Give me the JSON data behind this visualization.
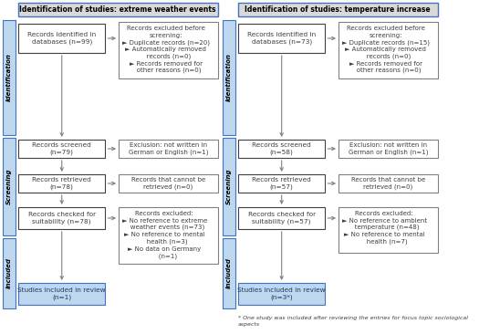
{
  "left_title": "Identification of studies: extreme weather events",
  "right_title": "Identification of studies: temperature increase",
  "left_side_labels": [
    "Identification",
    "Screening",
    "Included"
  ],
  "right_side_labels": [
    "Identification",
    "Screening",
    "Included"
  ],
  "left_boxes": {
    "id_main": "Records identified in\ndatabases (n=99)",
    "id_excl": "Records excluded before\nscreening:\n► Duplicate records (n=20)\n► Automatically removed\n   records (n=0)\n► Records removed for\n   other reasons (n=0)",
    "screen_main": "Records screened\n(n=79)",
    "screen_excl": "Exclusion: not written in\nGerman or English (n=1)",
    "retrieve_main": "Records retrieved\n(n=78)",
    "retrieve_excl": "Records that cannot be\nretrieved (n=0)",
    "suitability_main": "Records checked for\nsuitability (n=78)",
    "suitability_excl": "Records excluded:\n► No reference to extreme\n   weather events (n=73)\n► No reference to mental\n   health (n=3)\n► No data on Germany\n   (n=1)",
    "included_main": "Studies included in review\n(n=1)"
  },
  "right_boxes": {
    "id_main": "Records identified in\ndatabases (n=73)",
    "id_excl": "Records excluded before\nscreening:\n► Duplicate records (n=15)\n► Automatically removed\n   records (n=0)\n► Records removed for\n   other reasons (n=0)",
    "screen_main": "Records screened\n(n=58)",
    "screen_excl": "Exclusion: not written in\nGerman or English (n=1)",
    "retrieve_main": "Records retrieved\n(n=57)",
    "retrieve_excl": "Records that cannot be\nretrieved (n=0)",
    "suitability_main": "Records checked for\nsuitability (n=57)",
    "suitability_excl": "Records excluded:\n► No reference to ambient\n   temperature (n=48)\n► No reference to mental\n   health (n=7)",
    "included_main": "Studies included in review\n(n=3*)"
  },
  "footnote": "* One study was included after reviewing the entries for focus topic sociological\naspects",
  "colors": {
    "title_bg": "#d9d9d9",
    "title_border": "#4472c4",
    "side_label_bg": "#bdd7ee",
    "side_label_border": "#4472c4",
    "main_box_bg": "#ffffff",
    "main_box_border": "#404040",
    "excl_box_bg": "#ffffff",
    "excl_box_border": "#808080",
    "included_box_bg": "#bdd7ee",
    "included_box_border": "#4472c4",
    "arrow_color": "#808080",
    "text_color": "#404040",
    "title_text_color": "#000000"
  }
}
